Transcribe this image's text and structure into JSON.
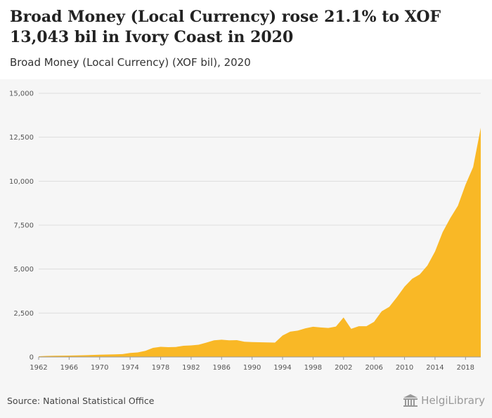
{
  "header": {
    "title": "Broad Money (Local Currency) rose 21.1% to XOF 13,043 bil in Ivory Coast in 2020",
    "subtitle": "Broad Money (Local Currency) (XOF bil), 2020"
  },
  "footer": {
    "source": "Source: National Statistical Office",
    "brand": "HelgiLibrary"
  },
  "colors": {
    "area": "#f9b826",
    "grid": "#dddddd",
    "background": "#f6f6f6"
  },
  "chart_data": {
    "type": "area",
    "title": "Broad Money (Local Currency) rose 21.1% to XOF 13,043 bil in Ivory Coast in 2020",
    "subtitle": "Broad Money (Local Currency) (XOF bil), 2020",
    "xlabel": "",
    "ylabel": "",
    "ylim": [
      0,
      15000
    ],
    "yticks": [
      0,
      2500,
      5000,
      7500,
      10000,
      12500,
      15000
    ],
    "ytick_labels": [
      "0",
      "2,500",
      "5,000",
      "7,500",
      "10,000",
      "12,500",
      "15,000"
    ],
    "xticks": [
      1962,
      1966,
      1970,
      1974,
      1978,
      1982,
      1986,
      1990,
      1994,
      1998,
      2002,
      2006,
      2010,
      2014,
      2018
    ],
    "grid": true,
    "legend": "none",
    "x": [
      1962,
      1963,
      1964,
      1965,
      1966,
      1967,
      1968,
      1969,
      1970,
      1971,
      1972,
      1973,
      1974,
      1975,
      1976,
      1977,
      1978,
      1979,
      1980,
      1981,
      1982,
      1983,
      1984,
      1985,
      1986,
      1987,
      1988,
      1989,
      1990,
      1991,
      1992,
      1993,
      1994,
      1995,
      1996,
      1997,
      1998,
      1999,
      2000,
      2001,
      2002,
      2003,
      2004,
      2005,
      2006,
      2007,
      2008,
      2009,
      2010,
      2011,
      2012,
      2013,
      2014,
      2015,
      2016,
      2017,
      2018,
      2019,
      2020
    ],
    "series": [
      {
        "values": [
          40,
          60,
          70,
          75,
          80,
          90,
          100,
          115,
          130,
          140,
          150,
          165,
          230,
          260,
          350,
          520,
          580,
          560,
          570,
          640,
          660,
          700,
          820,
          950,
          980,
          950,
          960,
          870,
          850,
          840,
          830,
          820,
          1220,
          1440,
          1500,
          1630,
          1720,
          1680,
          1650,
          1730,
          2250,
          1600,
          1750,
          1750,
          2000,
          2600,
          2850,
          3400,
          4000,
          4450,
          4700,
          5200,
          6000,
          7100,
          7900,
          8600,
          9800,
          10800,
          13043
        ]
      }
    ]
  }
}
